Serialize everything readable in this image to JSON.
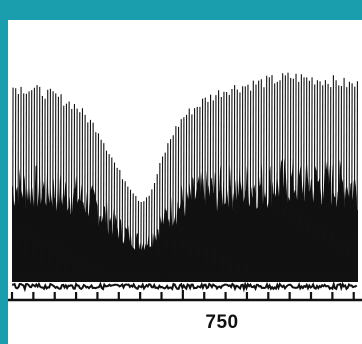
{
  "colors": {
    "border": "#1a9eae",
    "plot_background": "#ffffff",
    "ink": "#111111"
  },
  "chart_data": {
    "type": "line",
    "title": "",
    "xlabel": "",
    "ylabel": "",
    "grid": false,
    "legend": "none",
    "xlim": [
      670,
      832
    ],
    "ylim": [
      0,
      1
    ],
    "x_tick_values": [
      670,
      680,
      690,
      700,
      710,
      720,
      730,
      740,
      750,
      760,
      770,
      780,
      790,
      800,
      810,
      820,
      830
    ],
    "x_tick_labels": [
      {
        "value": 750,
        "text": "750"
      }
    ],
    "series": [
      {
        "x": [
          670,
          680,
          690,
          700,
          710,
          720,
          730,
          735,
          740,
          745,
          750,
          760,
          770,
          780,
          790,
          800,
          810,
          820,
          830
        ],
        "y": [
          0.92,
          0.91,
          0.88,
          0.83,
          0.72,
          0.52,
          0.38,
          0.42,
          0.58,
          0.7,
          0.78,
          0.86,
          0.91,
          0.93,
          0.95,
          0.97,
          0.96,
          0.95,
          0.93
        ]
      }
    ]
  }
}
